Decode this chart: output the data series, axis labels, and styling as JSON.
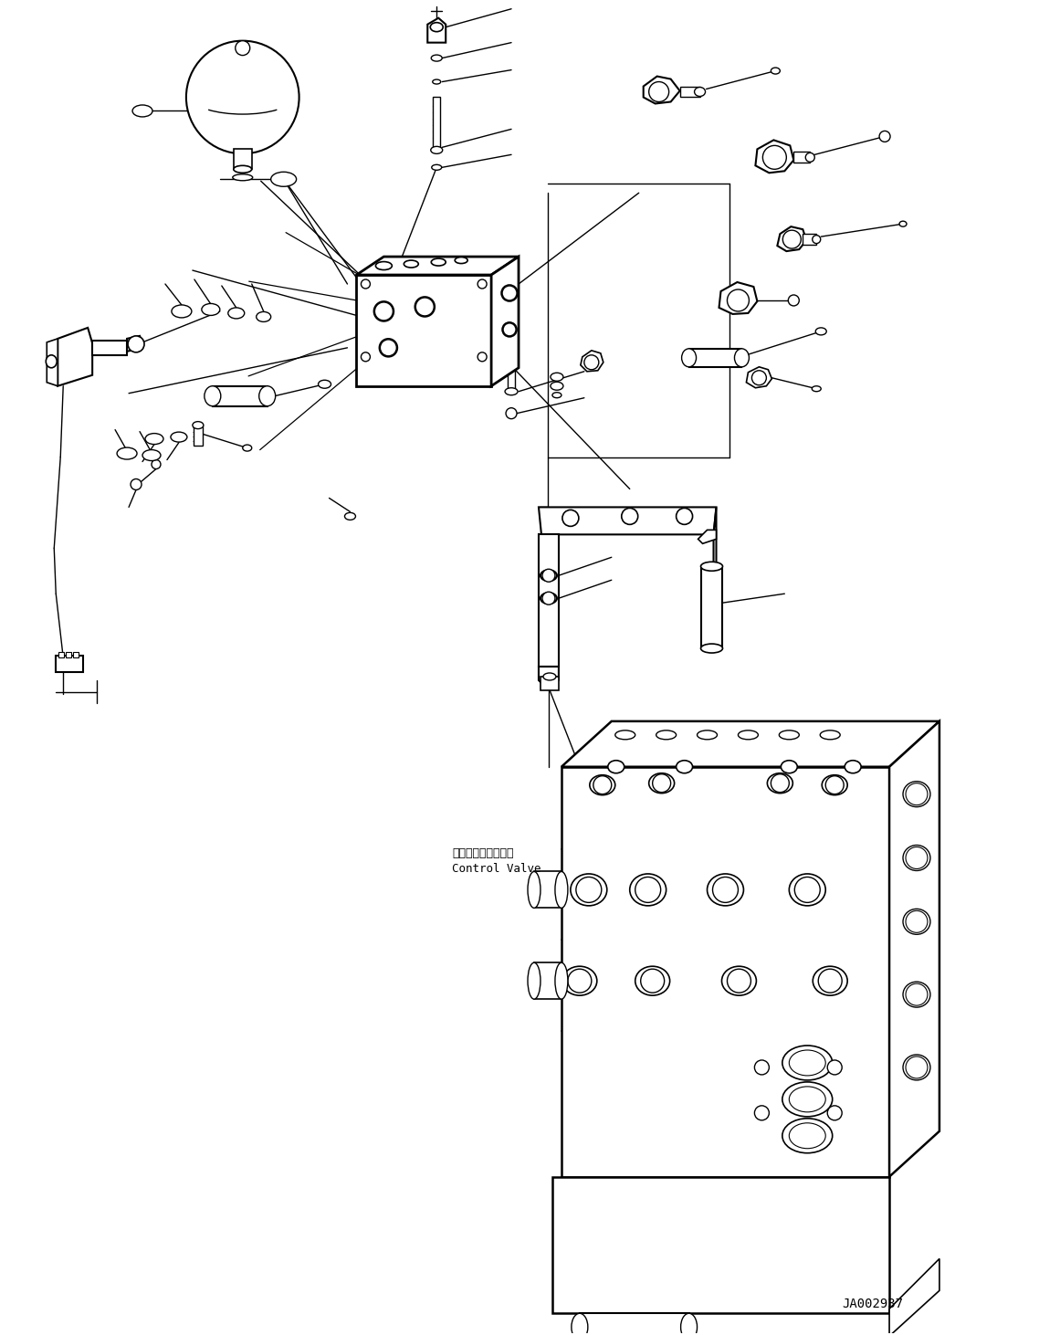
{
  "bg_color": "#ffffff",
  "line_color": "#000000",
  "fig_width": 11.61,
  "fig_height": 14.62,
  "dpi": 100,
  "watermark": "JA002937",
  "label_control_valve_jp": "コントロールバルブ",
  "label_control_valve_en": "Control Valve"
}
